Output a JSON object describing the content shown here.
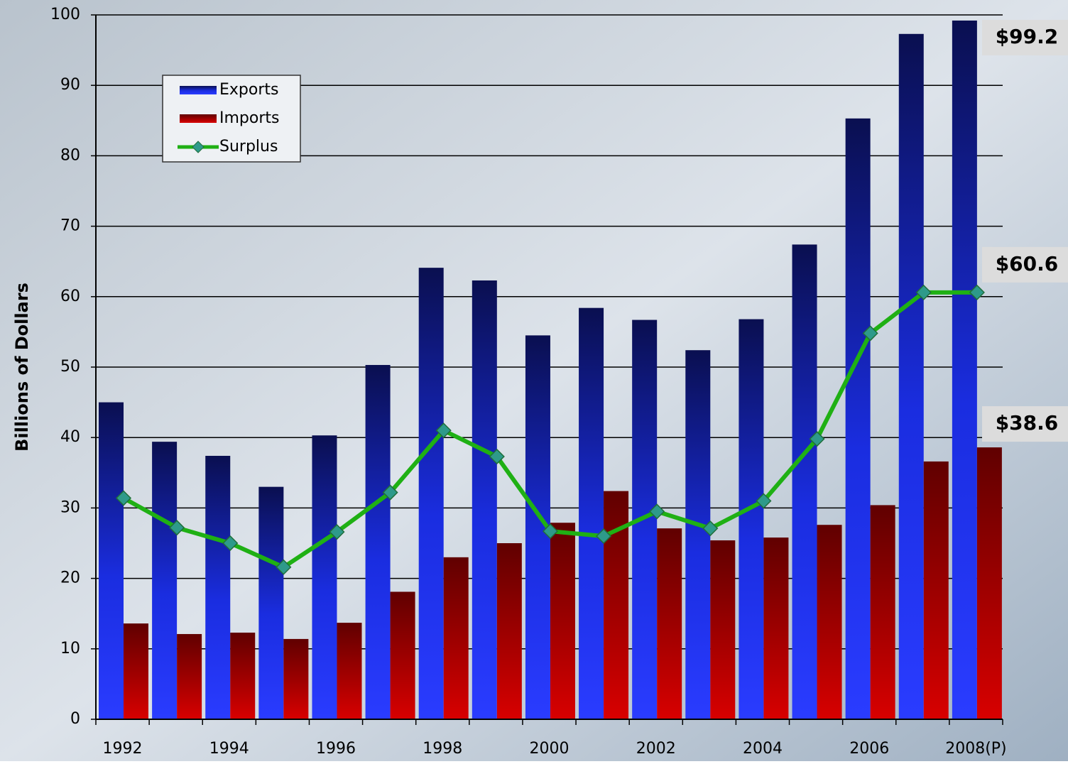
{
  "chart_data": {
    "type": "bar",
    "y_axis_label": "Billions of Dollars",
    "categories": [
      "1992",
      null,
      "1994",
      null,
      "1996",
      null,
      "1998",
      null,
      "2000",
      null,
      "2002",
      null,
      "2004",
      null,
      "2006",
      null,
      "2008(P)"
    ],
    "series": [
      {
        "name": "Exports",
        "type": "bar",
        "color": "#1f2fff",
        "values": [
          45.0,
          39.4,
          37.4,
          33.0,
          40.3,
          50.3,
          64.1,
          62.3,
          54.5,
          58.4,
          56.7,
          52.4,
          56.8,
          67.4,
          85.3,
          97.3,
          99.2
        ],
        "value_labels": [
          null,
          null,
          null,
          null,
          null,
          null,
          null,
          null,
          null,
          null,
          null,
          null,
          null,
          null,
          null,
          null,
          "$99.2"
        ]
      },
      {
        "name": "Imports",
        "type": "bar",
        "color": "#c00000",
        "values": [
          13.6,
          12.1,
          12.3,
          11.4,
          13.7,
          18.1,
          23.0,
          25.0,
          27.9,
          32.4,
          27.1,
          25.4,
          25.8,
          27.6,
          30.4,
          36.6,
          38.6
        ],
        "value_labels": [
          null,
          null,
          null,
          null,
          null,
          null,
          null,
          null,
          null,
          null,
          null,
          null,
          null,
          null,
          null,
          null,
          "$38.6"
        ]
      },
      {
        "name": "Surplus",
        "type": "line",
        "color": "#1fb014",
        "values": [
          31.4,
          27.2,
          25.0,
          21.6,
          26.6,
          32.2,
          41.0,
          37.3,
          26.7,
          26.0,
          29.5,
          27.1,
          31.0,
          39.8,
          54.8,
          60.6,
          60.6
        ],
        "value_labels": [
          null,
          null,
          null,
          null,
          null,
          null,
          null,
          null,
          null,
          null,
          null,
          null,
          null,
          null,
          null,
          null,
          "$60.6"
        ]
      }
    ],
    "ylim": [
      0,
      100
    ],
    "yticks": [
      0,
      10,
      20,
      30,
      40,
      50,
      60,
      70,
      80,
      90,
      100
    ],
    "grid": true,
    "legend": "upper left"
  }
}
